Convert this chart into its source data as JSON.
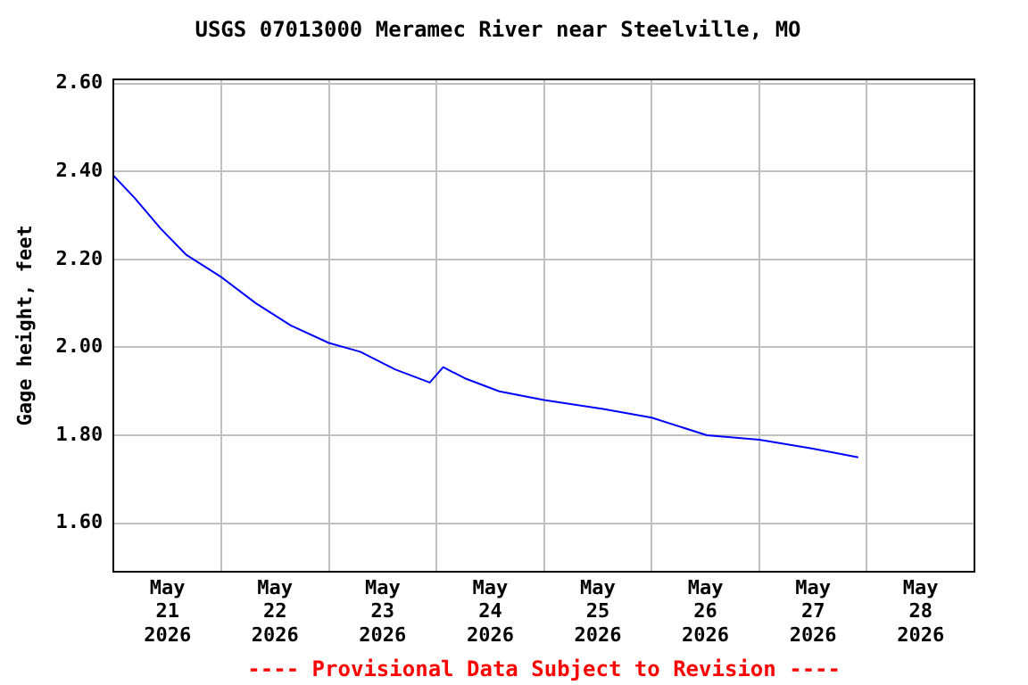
{
  "chart_data": {
    "type": "line",
    "title": "USGS 07013000 Meramec River near Steelville, MO",
    "ylabel": "Gage height, feet",
    "x": [
      "2026-05-21T00:00",
      "2026-05-21T04:40",
      "2026-05-21T10:30",
      "2026-05-21T16:15",
      "2026-05-22T00:00",
      "2026-05-22T07:45",
      "2026-05-22T15:30",
      "2026-05-23T00:00",
      "2026-05-23T07:00",
      "2026-05-23T14:45",
      "2026-05-23T22:30",
      "2026-05-24T01:30",
      "2026-05-24T06:15",
      "2026-05-24T14:00",
      "2026-05-25T00:00",
      "2026-05-25T13:10",
      "2026-05-26T00:00",
      "2026-05-26T12:20",
      "2026-05-27T00:00",
      "2026-05-27T11:40",
      "2026-05-27T22:05"
    ],
    "series": [
      {
        "color": "#0000ff",
        "values": [
          2.39,
          2.34,
          2.27,
          2.21,
          2.16,
          2.1,
          2.05,
          2.01,
          1.99,
          1.95,
          1.92,
          1.955,
          1.93,
          1.9,
          1.88,
          1.86,
          1.84,
          1.8,
          1.79,
          1.77,
          1.75
        ]
      }
    ],
    "xlim": [
      "2026-05-21T00:00",
      "2026-05-29T00:00"
    ],
    "xticks": [
      {
        "value": "2026-05-21T12:00",
        "label": "May 21 2026"
      },
      {
        "value": "2026-05-22T00:00",
        "label": null
      },
      {
        "value": "2026-05-22T12:00",
        "label": "May 22 2026"
      },
      {
        "value": "2026-05-23T00:00",
        "label": null
      },
      {
        "value": "2026-05-23T12:00",
        "label": "May 23 2026"
      },
      {
        "value": "2026-05-24T00:00",
        "label": null
      },
      {
        "value": "2026-05-24T12:00",
        "label": "May 24 2026"
      },
      {
        "value": "2026-05-25T00:00",
        "label": null
      },
      {
        "value": "2026-05-25T12:00",
        "label": "May 25 2026"
      },
      {
        "value": "2026-05-26T00:00",
        "label": null
      },
      {
        "value": "2026-05-26T12:00",
        "label": "May 26 2026"
      },
      {
        "value": "2026-05-27T00:00",
        "label": null
      },
      {
        "value": "2026-05-27T12:00",
        "label": "May 27 2026"
      },
      {
        "value": "2026-05-28T00:00",
        "label": null
      },
      {
        "value": "2026-05-28T12:00",
        "label": "May 28 2026"
      }
    ],
    "ylim": [
      1.49,
      2.61
    ],
    "yticks": [
      {
        "value": 1.6,
        "label": "1.60"
      },
      {
        "value": 1.8,
        "label": "1.80"
      },
      {
        "value": 2.0,
        "label": "2.00"
      },
      {
        "value": 2.2,
        "label": "2.20"
      },
      {
        "value": 2.4,
        "label": "2.40"
      },
      {
        "value": 2.6,
        "label": "2.60"
      }
    ],
    "grid": true,
    "legend": false,
    "marker": "none",
    "line_style": "solid",
    "annotations": [
      "---- Provisional Data Subject to Revision ----"
    ]
  }
}
